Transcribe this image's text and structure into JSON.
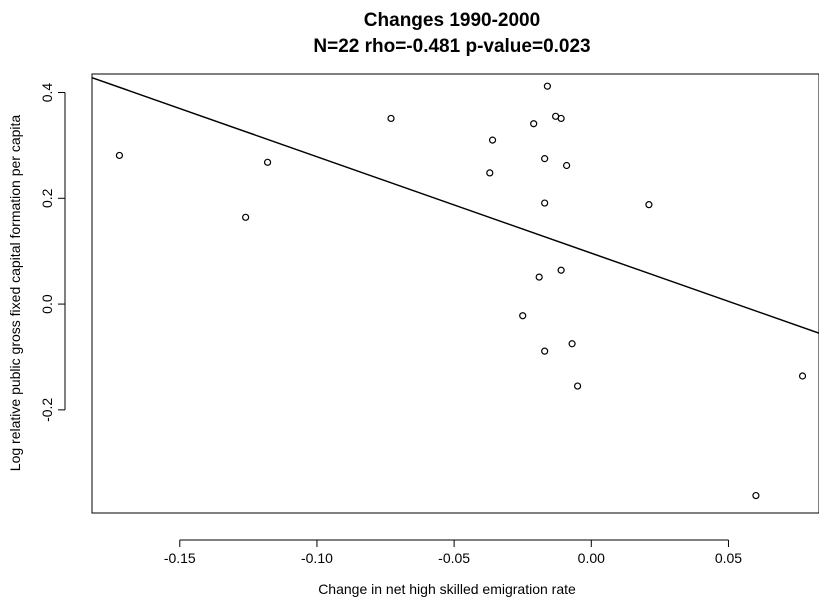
{
  "chart_data": {
    "type": "scatter",
    "title": "Changes 1990-2000",
    "subtitle": "N=22 rho=-0.481 p-value=0.023",
    "xlabel": "Change in net high skilled emigration rate",
    "ylabel": "Log relative public gross fixed capital formation per capita",
    "xlim": [
      -0.182,
      0.083
    ],
    "ylim": [
      -0.395,
      0.435
    ],
    "xticks": [
      "-0.15",
      "-0.10",
      "-0.05",
      "0.00",
      "0.05"
    ],
    "xtick_values": [
      -0.15,
      -0.1,
      -0.05,
      0.0,
      0.05
    ],
    "yticks": [
      "-0.2",
      "0.0",
      "0.2",
      "0.4"
    ],
    "ytick_values": [
      -0.2,
      0.0,
      0.2,
      0.4
    ],
    "grid": false,
    "points": [
      {
        "x": -0.172,
        "y": 0.281
      },
      {
        "x": -0.126,
        "y": 0.164
      },
      {
        "x": -0.118,
        "y": 0.268
      },
      {
        "x": -0.073,
        "y": 0.351
      },
      {
        "x": -0.036,
        "y": 0.31
      },
      {
        "x": -0.037,
        "y": 0.248
      },
      {
        "x": -0.021,
        "y": 0.341
      },
      {
        "x": -0.016,
        "y": 0.412
      },
      {
        "x": -0.013,
        "y": 0.355
      },
      {
        "x": -0.011,
        "y": 0.351
      },
      {
        "x": -0.017,
        "y": 0.275
      },
      {
        "x": -0.009,
        "y": 0.262
      },
      {
        "x": -0.017,
        "y": 0.191
      },
      {
        "x": 0.021,
        "y": 0.188
      },
      {
        "x": -0.011,
        "y": 0.064
      },
      {
        "x": -0.019,
        "y": 0.051
      },
      {
        "x": -0.025,
        "y": -0.022
      },
      {
        "x": -0.007,
        "y": -0.075
      },
      {
        "x": -0.017,
        "y": -0.089
      },
      {
        "x": -0.005,
        "y": -0.155
      },
      {
        "x": 0.077,
        "y": -0.136
      },
      {
        "x": 0.06,
        "y": -0.362
      }
    ],
    "fit_line": {
      "x": [
        -0.182,
        0.083
      ],
      "y": [
        0.428,
        -0.055
      ]
    }
  }
}
